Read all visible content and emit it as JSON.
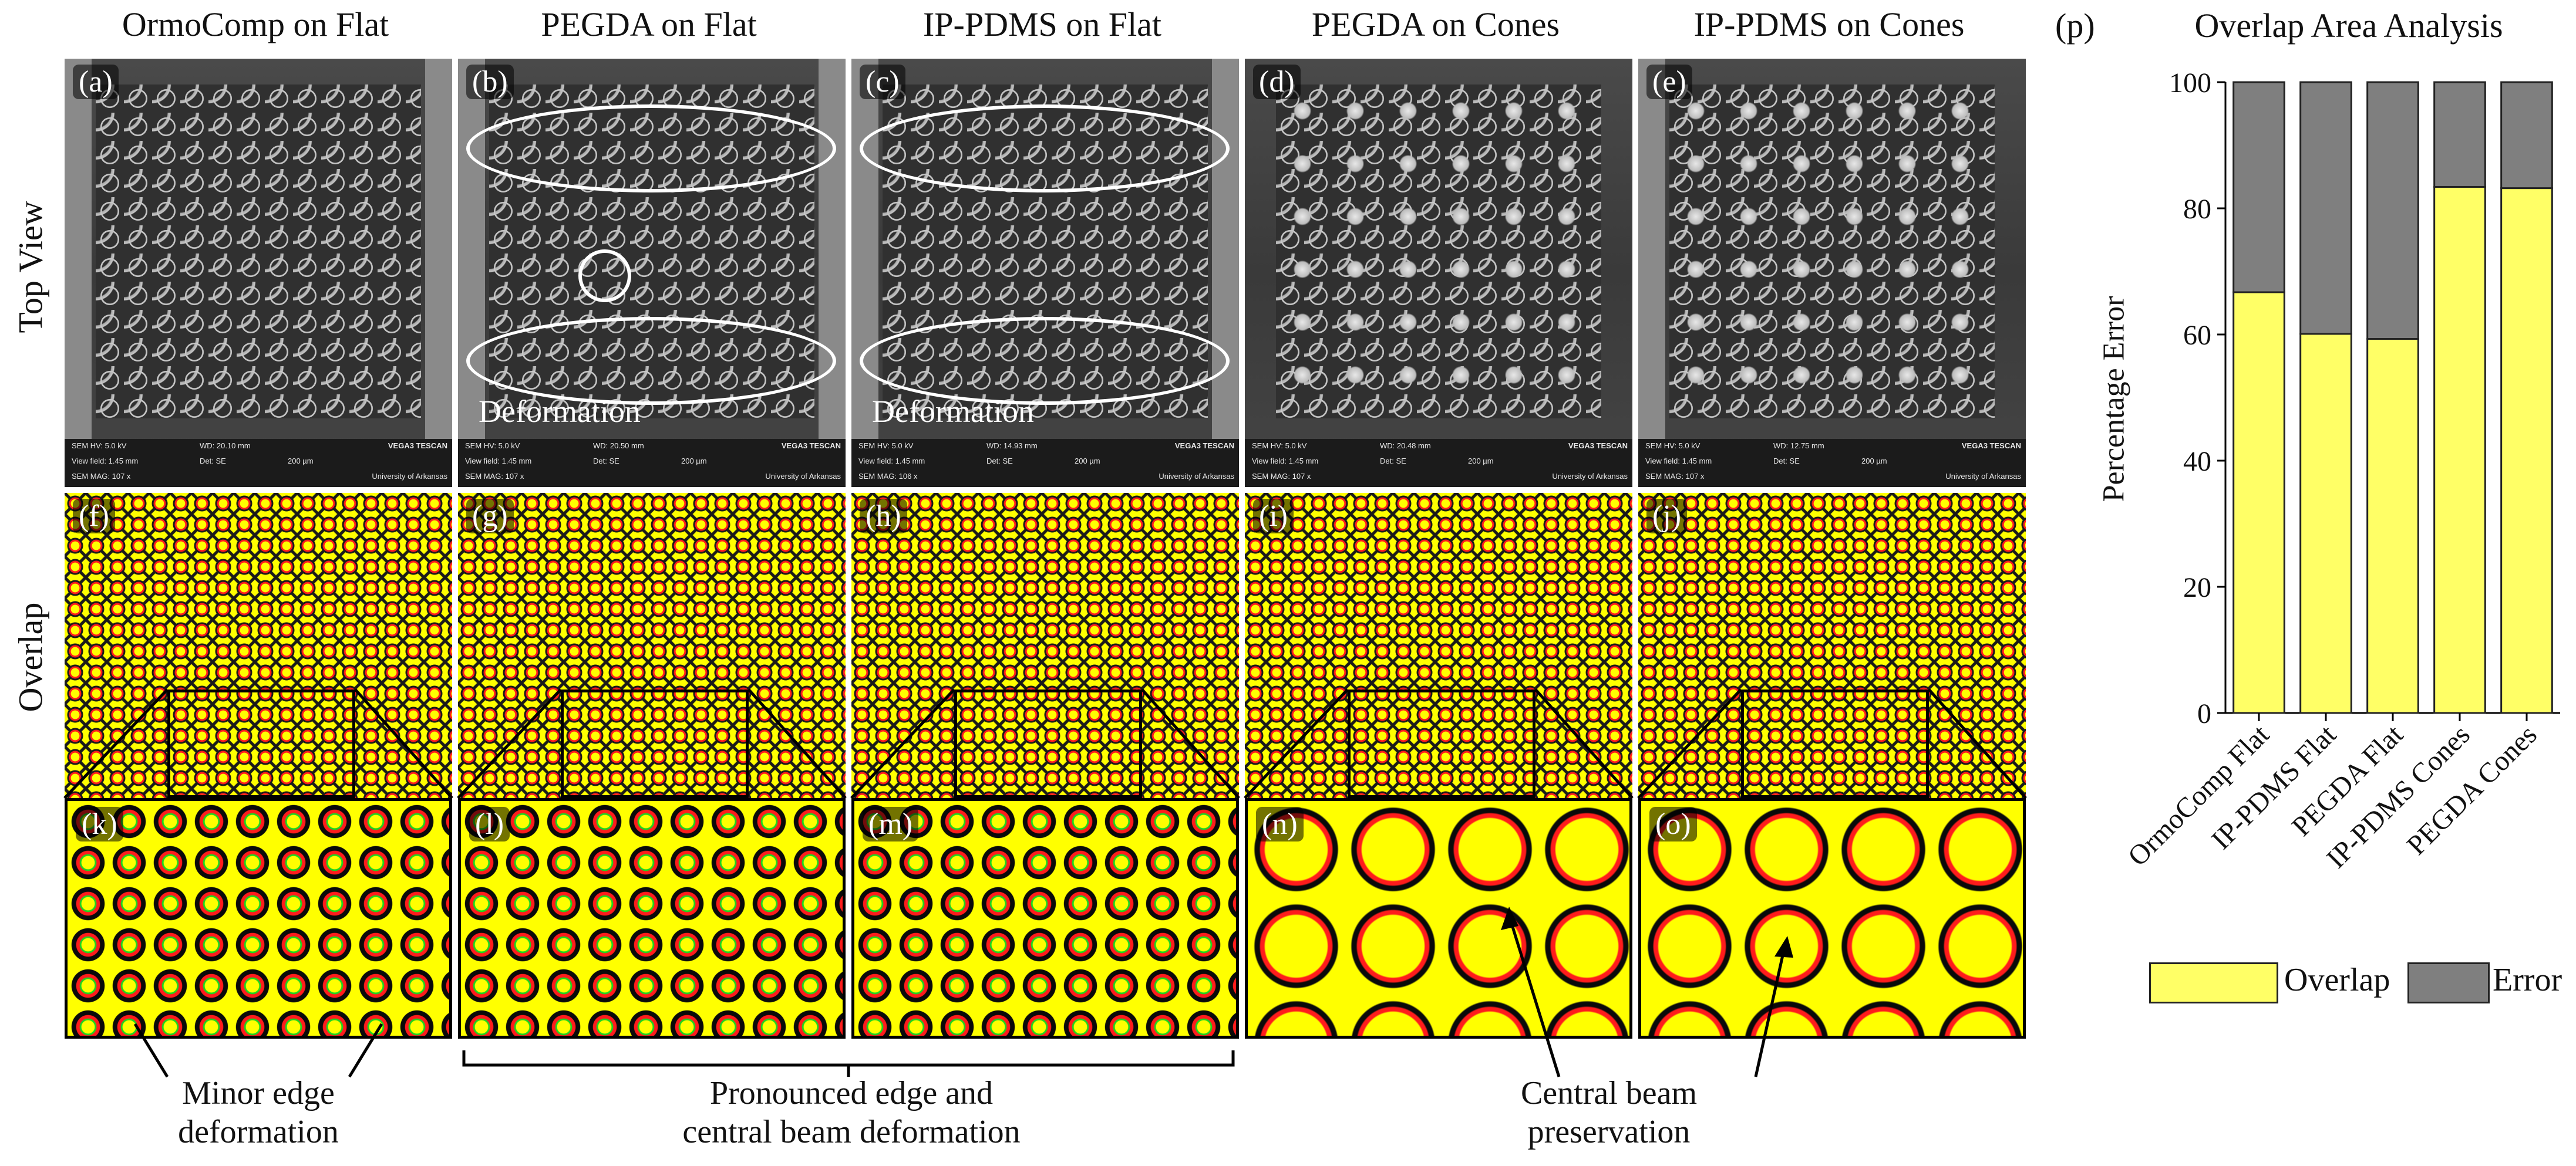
{
  "columns": [
    {
      "title": "OrmoComp on Flat"
    },
    {
      "title": "PEGDA on Flat"
    },
    {
      "title": "IP-PDMS on Flat"
    },
    {
      "title": "PEGDA on Cones"
    },
    {
      "title": "IP-PDMS on Cones"
    }
  ],
  "rows": {
    "top_view": "Top View",
    "overlap": "Overlap"
  },
  "panel_labels": {
    "top": [
      "(a)",
      "(b)",
      "(c)",
      "(d)",
      "(e)"
    ],
    "overlap": [
      "(f)",
      "(g)",
      "(h)",
      "(i)",
      "(j)"
    ],
    "zoom": [
      "(k)",
      "(l)",
      "(m)",
      "(n)",
      "(o)"
    ],
    "chart": "(p)"
  },
  "sem_info": [
    {
      "hv": "SEM HV: 5.0 kV",
      "wd": "WD: 20.10 mm",
      "brand": "VEGA3 TESCAN",
      "vf": "View field: 1.45 mm",
      "det": "Det: SE",
      "scale": "200 µm",
      "mag": "SEM MAG: 107 x",
      "inst": "University of Arkansas"
    },
    {
      "hv": "SEM HV: 5.0 kV",
      "wd": "WD: 20.50 mm",
      "brand": "VEGA3 TESCAN",
      "vf": "View field: 1.45 mm",
      "det": "Det: SE",
      "scale": "200 µm",
      "mag": "SEM MAG: 107 x",
      "inst": "University of Arkansas"
    },
    {
      "hv": "SEM HV: 5.0 kV",
      "wd": "WD: 14.93 mm",
      "brand": "VEGA3 TESCAN",
      "vf": "View field: 1.45 mm",
      "det": "Det: SE",
      "scale": "200 µm",
      "mag": "SEM MAG: 106 x",
      "inst": "University of Arkansas"
    },
    {
      "hv": "SEM HV: 5.0 kV",
      "wd": "WD: 20.48 mm",
      "brand": "VEGA3 TESCAN",
      "vf": "View field: 1.45 mm",
      "det": "Det: SE",
      "scale": "200 µm",
      "mag": "SEM MAG: 107 x",
      "inst": "University of Arkansas"
    },
    {
      "hv": "SEM HV: 5.0 kV",
      "wd": "WD: 12.75 mm",
      "brand": "VEGA3 TESCAN",
      "vf": "View field: 1.45 mm",
      "det": "Det: SE",
      "scale": "200 µm",
      "mag": "SEM MAG: 107 x",
      "inst": "University of Arkansas"
    }
  ],
  "deformation_labels": [
    "Deformation",
    "Deformation"
  ],
  "annotations": {
    "minor_l1": "Minor edge",
    "minor_l2": "deformation",
    "pron_l1": "Pronounced edge and",
    "pron_l2": "central beam deformation",
    "central_l1": "Central beam",
    "central_l2": "preservation"
  },
  "colors": {
    "overlap": "#ffff66",
    "error": "#7f7f7f",
    "mesh_red": "#ff1c1c",
    "mesh_green": "#1fd41f",
    "mesh_yellow": "#ffff00"
  },
  "chart_data": {
    "type": "bar",
    "stacked": true,
    "title": "Overlap Area Analysis",
    "xlabel": "",
    "ylabel": "Percentage Error",
    "ylim": [
      0,
      100
    ],
    "yticks": [
      "0",
      "20",
      "40",
      "60",
      "80",
      "100"
    ],
    "categories": [
      "OrmoComp Flat",
      "IP-PDMS Flat",
      "PEGDA Flat",
      "IP-PDMS Cones",
      "PEGDA Cones"
    ],
    "series": [
      {
        "name": "Overlap",
        "color": "#ffff66",
        "values": [
          66.7,
          60.1,
          59.3,
          83.4,
          83.2
        ]
      },
      {
        "name": "Error",
        "color": "#7f7f7f",
        "values": [
          33.3,
          39.9,
          40.7,
          16.6,
          16.8
        ]
      }
    ],
    "legend": "bottom"
  }
}
